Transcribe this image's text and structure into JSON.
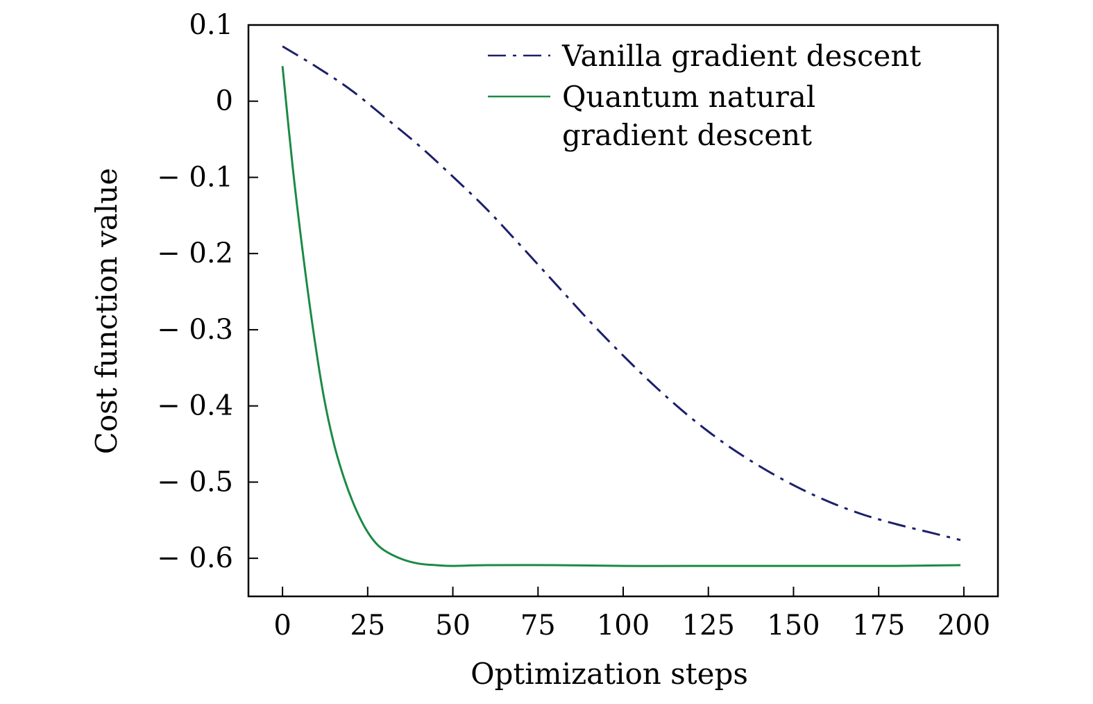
{
  "chart_data": {
    "type": "line",
    "xlabel": "Optimization steps",
    "ylabel": "Cost function value",
    "xlim": [
      -10,
      210
    ],
    "ylim": [
      -0.65,
      0.1
    ],
    "xticks": [
      0,
      25,
      50,
      75,
      100,
      125,
      150,
      175,
      200
    ],
    "xtick_labels": [
      "0",
      "25",
      "50",
      "75",
      "100",
      "125",
      "150",
      "175",
      "200"
    ],
    "yticks": [
      0.1,
      0,
      -0.1,
      -0.2,
      -0.3,
      -0.4,
      -0.5,
      -0.6
    ],
    "ytick_labels": [
      "0.1",
      "0",
      "− 0.1",
      "− 0.2",
      "− 0.3",
      "− 0.4",
      "− 0.5",
      "− 0.6"
    ],
    "grid": false,
    "legend_position": "top-right",
    "series": [
      {
        "name": "Vanilla gradient descent",
        "color": "#1c1f6b",
        "style": "dashdot",
        "x": [
          0,
          10,
          20,
          30,
          40,
          50,
          60,
          70,
          80,
          90,
          100,
          110,
          120,
          130,
          140,
          150,
          160,
          170,
          180,
          190,
          199
        ],
        "y": [
          0.072,
          0.045,
          0.015,
          -0.021,
          -0.058,
          -0.099,
          -0.142,
          -0.19,
          -0.239,
          -0.288,
          -0.334,
          -0.377,
          -0.416,
          -0.45,
          -0.479,
          -0.504,
          -0.525,
          -0.542,
          -0.555,
          -0.566,
          -0.576
        ]
      },
      {
        "name": "Quantum natural\ngradient descent",
        "color": "#1a8a45",
        "style": "solid",
        "x": [
          0,
          3,
          6,
          9,
          12,
          15,
          18,
          21,
          24,
          27,
          30,
          35,
          40,
          45,
          50,
          60,
          80,
          100,
          120,
          150,
          180,
          199
        ],
        "y": [
          0.046,
          -0.087,
          -0.2,
          -0.3,
          -0.385,
          -0.448,
          -0.494,
          -0.53,
          -0.558,
          -0.578,
          -0.59,
          -0.601,
          -0.607,
          -0.609,
          -0.61,
          -0.609,
          -0.609,
          -0.61,
          -0.61,
          -0.61,
          -0.61,
          -0.609
        ]
      }
    ]
  }
}
